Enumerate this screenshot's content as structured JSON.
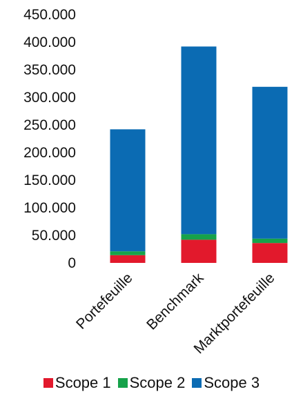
{
  "chart_data": {
    "type": "bar",
    "stacked": true,
    "categories": [
      "Portefeuille",
      "Benchmark",
      "Marktportefeuille"
    ],
    "series": [
      {
        "name": "Scope 1",
        "color": "#e2192c",
        "values": [
          14000,
          42000,
          36000
        ]
      },
      {
        "name": "Scope 2",
        "color": "#16a24a",
        "values": [
          7000,
          10000,
          8000
        ]
      },
      {
        "name": "Scope 3",
        "color": "#0b6bb3",
        "values": [
          221000,
          340000,
          275000
        ]
      }
    ],
    "y_ticks": [
      "0",
      "50.000",
      "100.000",
      "150.000",
      "200.000",
      "250.000",
      "300.000",
      "350.000",
      "400.000",
      "450.000"
    ],
    "ylim": [
      0,
      450000
    ],
    "grid": false,
    "legend_position": "bottom"
  }
}
